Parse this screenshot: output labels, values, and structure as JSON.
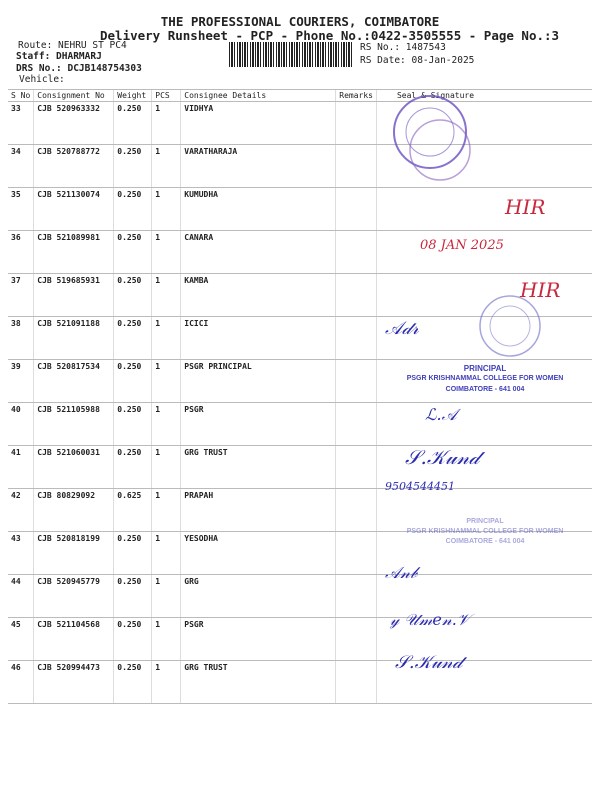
{
  "header": {
    "company": "THE PROFESSIONAL COURIERS, COIMBATORE",
    "subtitle": "Delivery Runsheet - PCP - Phone No.:0422-3505555 - Page No.:3",
    "route": "Route: NEHRU ST PC4",
    "staff": "Staff: DHARMARJ",
    "drs_no": "DRS No.: DCJB148754303",
    "vehicle": "Vehicle:",
    "rs_no": "RS No.: 1487543",
    "rs_date": "RS Date: 08-Jan-2025"
  },
  "table": {
    "columns": [
      "S No",
      "Consignment No",
      "Weight",
      "PCS",
      "Consignee Details",
      "Remarks",
      "Seal & Signature"
    ],
    "rows": [
      {
        "sno": "33",
        "cn": "CJB 520963332",
        "weight": "0.250",
        "pcs": "1",
        "consignee": "VIDHYA"
      },
      {
        "sno": "34",
        "cn": "CJB 520788772",
        "weight": "0.250",
        "pcs": "1",
        "consignee": "VARATHARAJA"
      },
      {
        "sno": "35",
        "cn": "CJB 521130074",
        "weight": "0.250",
        "pcs": "1",
        "consignee": "KUMUDHA"
      },
      {
        "sno": "36",
        "cn": "CJB 521089981",
        "weight": "0.250",
        "pcs": "1",
        "consignee": "CANARA"
      },
      {
        "sno": "37",
        "cn": "CJB 519685931",
        "weight": "0.250",
        "pcs": "1",
        "consignee": "KAMBA"
      },
      {
        "sno": "38",
        "cn": "CJB 521091188",
        "weight": "0.250",
        "pcs": "1",
        "consignee": "ICICI"
      },
      {
        "sno": "39",
        "cn": "CJB 520817534",
        "weight": "0.250",
        "pcs": "1",
        "consignee": "PSGR PRINCIPAL"
      },
      {
        "sno": "40",
        "cn": "CJB 521105988",
        "weight": "0.250",
        "pcs": "1",
        "consignee": "PSGR"
      },
      {
        "sno": "41",
        "cn": "CJB 521060031",
        "weight": "0.250",
        "pcs": "1",
        "consignee": "GRG TRUST"
      },
      {
        "sno": "42",
        "cn": "CJB 80829092",
        "weight": "0.625",
        "pcs": "1",
        "consignee": "PRAPAH"
      },
      {
        "sno": "43",
        "cn": "CJB 520818199",
        "weight": "0.250",
        "pcs": "1",
        "consignee": "YESODHA"
      },
      {
        "sno": "44",
        "cn": "CJB 520945779",
        "weight": "0.250",
        "pcs": "1",
        "consignee": "GRG"
      },
      {
        "sno": "45",
        "cn": "CJB 521104568",
        "weight": "0.250",
        "pcs": "1",
        "consignee": "PSGR"
      },
      {
        "sno": "46",
        "cn": "CJB 520994473",
        "weight": "0.250",
        "pcs": "1",
        "consignee": "GRG TRUST"
      }
    ]
  },
  "stamps": {
    "principal_title": "PRINCIPAL",
    "college": "PSGR KRISHNAMMAL COLLEGE FOR WOMEN",
    "city": "COIMBATORE - 641 004",
    "date_stamp": "08 JAN 2025",
    "hir_mark": "HIR",
    "phone_note": "9504544451"
  },
  "colors": {
    "stamp": "#4040b8",
    "red_ink": "#c8283c",
    "pen": "#2b2bb0"
  }
}
